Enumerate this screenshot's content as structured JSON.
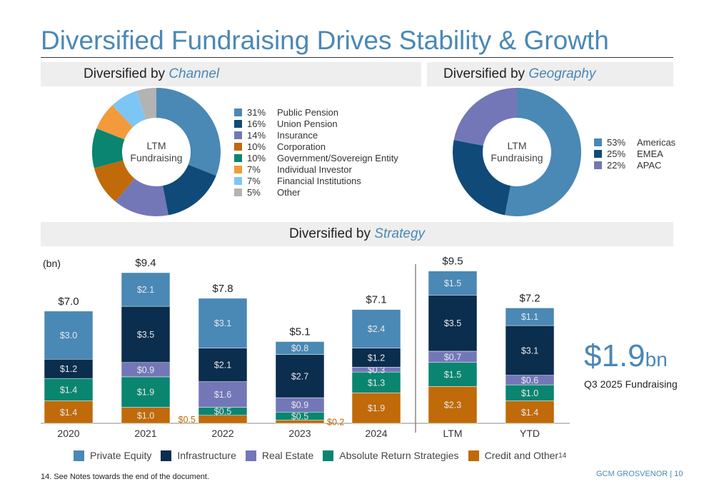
{
  "title": "Diversified Fundraising Drives Stability & Growth",
  "channel_header": {
    "prefix": "Diversified by ",
    "emph": "Channel"
  },
  "geo_header": {
    "prefix": "Diversified by ",
    "emph": "Geography"
  },
  "strategy_header": {
    "prefix": "Diversified by ",
    "emph": "Strategy"
  },
  "donut_center_label": [
    "LTM",
    "Fundraising"
  ],
  "highlight": {
    "value": "$1.9",
    "unit": "bn",
    "label": "Q3 2025 Fundraising"
  },
  "footnote": "14. See Notes towards the end of the document.",
  "footer": "GCM GROSVENOR | 10",
  "chart_data": [
    {
      "type": "pie",
      "variant": "donut",
      "name": "Channel",
      "center_label": "LTM Fundraising",
      "slices": [
        {
          "label": "Public Pension",
          "pct": "31%",
          "value": 31,
          "color": "#4a88b5"
        },
        {
          "label": "Union Pension",
          "pct": "16%",
          "value": 16,
          "color": "#0f4a78"
        },
        {
          "label": "Insurance",
          "pct": "14%",
          "value": 14,
          "color": "#7377b8"
        },
        {
          "label": "Corporation",
          "pct": "10%",
          "value": 10,
          "color": "#c06a0a"
        },
        {
          "label": "Government/Sovereign Entity",
          "pct": "10%",
          "value": 10,
          "color": "#0a8570"
        },
        {
          "label": "Individual Investor",
          "pct": "7%",
          "value": 7,
          "color": "#f39a3c"
        },
        {
          "label": "Financial Institutions",
          "pct": "7%",
          "value": 7,
          "color": "#7cc6f5"
        },
        {
          "label": "Other",
          "pct": "5%",
          "value": 5,
          "color": "#b3b3b3"
        }
      ]
    },
    {
      "type": "pie",
      "variant": "donut",
      "name": "Geography",
      "center_label": "LTM Fundraising",
      "slices": [
        {
          "label": "Americas",
          "pct": "53%",
          "value": 53,
          "color": "#4a88b5"
        },
        {
          "label": "EMEA",
          "pct": "25%",
          "value": 25,
          "color": "#0f4a78"
        },
        {
          "label": "APAC",
          "pct": "22%",
          "value": 22,
          "color": "#7377b8"
        }
      ]
    },
    {
      "type": "bar",
      "stacked": true,
      "ylabel": "(bn)",
      "categories": [
        "2020",
        "2021",
        "2022",
        "2023",
        "2024",
        "LTM",
        "YTD"
      ],
      "totals": [
        "$7.0",
        "$9.4",
        "$7.8",
        "$5.1",
        "$7.1",
        "$9.5",
        "$7.2"
      ],
      "total_values": [
        7.0,
        9.4,
        7.8,
        5.1,
        7.1,
        9.5,
        7.2
      ],
      "series": [
        {
          "name": "Credit and Other",
          "footnote": "14",
          "color": "#c06a0a",
          "values": [
            1.4,
            1.0,
            0.5,
            0.2,
            1.9,
            2.3,
            1.4
          ]
        },
        {
          "name": "Absolute Return Strategies",
          "color": "#0a8570",
          "values": [
            1.4,
            1.9,
            0.5,
            0.5,
            1.3,
            1.5,
            1.0
          ]
        },
        {
          "name": "Real Estate",
          "color": "#7377b8",
          "values": [
            0,
            0.9,
            1.6,
            0.9,
            0.3,
            0.7,
            0.6
          ]
        },
        {
          "name": "Infrastructure",
          "color": "#0b2d4e",
          "values": [
            1.2,
            3.5,
            2.1,
            2.7,
            1.2,
            3.5,
            3.1
          ]
        },
        {
          "name": "Private Equity",
          "color": "#4a88b5",
          "values": [
            3.0,
            2.1,
            3.1,
            0.8,
            2.4,
            1.5,
            1.1
          ]
        }
      ],
      "legend_order": [
        "Private Equity",
        "Infrastructure",
        "Real Estate",
        "Absolute Return Strategies",
        "Credit and Other"
      ],
      "legend": "bottom"
    }
  ]
}
